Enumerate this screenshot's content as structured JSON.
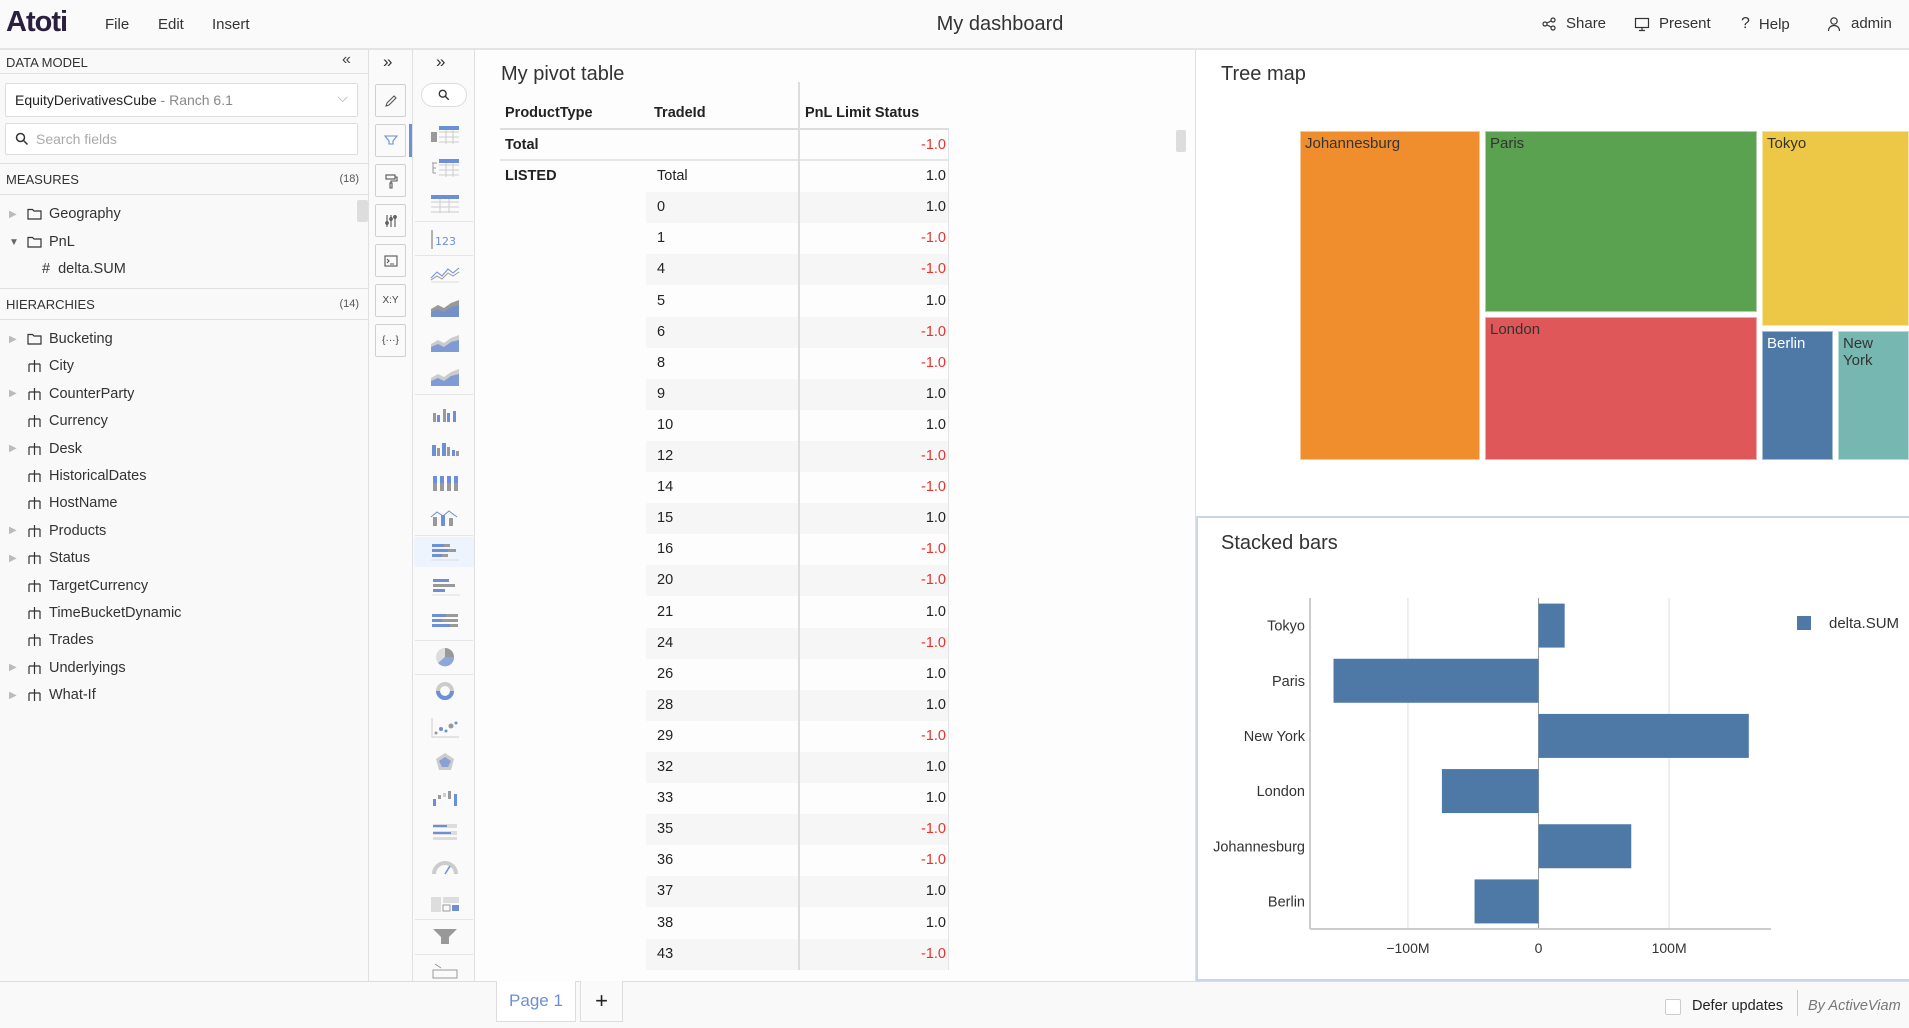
{
  "app": {
    "logo": "Atoti",
    "menu": [
      "File",
      "Edit",
      "Insert"
    ],
    "title": "My dashboard",
    "actions": [
      {
        "label": "Share",
        "icon": "share-icon"
      },
      {
        "label": "Present",
        "icon": "monitor-icon"
      },
      {
        "label": "Help",
        "icon": "help-icon"
      },
      {
        "label": "admin",
        "icon": "user-icon"
      }
    ]
  },
  "data_model": {
    "header": "DATA MODEL",
    "cube": "EquityDerivativesCube",
    "server": "Ranch 6.1",
    "cube_separator": " - ",
    "search_placeholder": "Search fields",
    "measures": {
      "label": "MEASURES",
      "count": "(18)",
      "items": [
        {
          "label": "Geography",
          "type": "folder",
          "expand": "collapsed"
        },
        {
          "label": "PnL",
          "type": "folder",
          "expand": "expanded"
        },
        {
          "label": "delta.SUM",
          "type": "measure",
          "expand": "none"
        }
      ]
    },
    "hierarchies": {
      "label": "HIERARCHIES",
      "count": "(14)",
      "items": [
        {
          "label": "Bucketing",
          "type": "folder",
          "expand": true
        },
        {
          "label": "City",
          "type": "h",
          "expand": false
        },
        {
          "label": "CounterParty",
          "type": "h",
          "expand": true
        },
        {
          "label": "Currency",
          "type": "h",
          "expand": false
        },
        {
          "label": "Desk",
          "type": "h",
          "expand": true
        },
        {
          "label": "HistoricalDates",
          "type": "h",
          "expand": false
        },
        {
          "label": "HostName",
          "type": "h",
          "expand": false
        },
        {
          "label": "Products",
          "type": "h",
          "expand": true
        },
        {
          "label": "Status",
          "type": "h",
          "expand": true
        },
        {
          "label": "TargetCurrency",
          "type": "h",
          "expand": false
        },
        {
          "label": "TimeBucketDynamic",
          "type": "h",
          "expand": false
        },
        {
          "label": "Trades",
          "type": "h",
          "expand": false
        },
        {
          "label": "Underlyings",
          "type": "h",
          "expand": true
        },
        {
          "label": "What-If",
          "type": "h",
          "expand": true
        }
      ]
    }
  },
  "tools": {
    "buttons": [
      {
        "name": "pencil-icon"
      },
      {
        "name": "filter-icon",
        "active": true
      },
      {
        "name": "paint-roller-icon"
      },
      {
        "name": "sliders-icon"
      },
      {
        "name": "terminal-icon"
      },
      {
        "name": "xy-icon",
        "text": "X:Y"
      },
      {
        "name": "braces-icon",
        "text": "{···}"
      }
    ]
  },
  "widgets_palette": [
    "pivot-table",
    "tree-table",
    "table",
    "kpi",
    "line",
    "area",
    "stacked-area",
    "100-area",
    "column",
    "clustered-column",
    "stacked-column",
    "combo",
    "stacked-bar",
    "bar",
    "100-bar",
    "pie",
    "donut",
    "scatter",
    "radar",
    "waterfall",
    "bullet",
    "gauge",
    "layout",
    "funnel",
    "drillthrough"
  ],
  "widgets_palette_selected": "stacked-bar",
  "kpi_text": "123",
  "pivot": {
    "title": "My pivot table",
    "headers": [
      "ProductType",
      "TradeId",
      "PnL Limit Status"
    ],
    "rows": [
      {
        "product": "Total",
        "trade": "",
        "value": "-1.0"
      },
      {
        "product": "LISTED",
        "trade": "Total",
        "value": "1.0"
      },
      {
        "product": "",
        "trade": "0",
        "value": "1.0"
      },
      {
        "product": "",
        "trade": "1",
        "value": "-1.0"
      },
      {
        "product": "",
        "trade": "4",
        "value": "-1.0"
      },
      {
        "product": "",
        "trade": "5",
        "value": "1.0"
      },
      {
        "product": "",
        "trade": "6",
        "value": "-1.0"
      },
      {
        "product": "",
        "trade": "8",
        "value": "-1.0"
      },
      {
        "product": "",
        "trade": "9",
        "value": "1.0"
      },
      {
        "product": "",
        "trade": "10",
        "value": "1.0"
      },
      {
        "product": "",
        "trade": "12",
        "value": "-1.0"
      },
      {
        "product": "",
        "trade": "14",
        "value": "-1.0"
      },
      {
        "product": "",
        "trade": "15",
        "value": "1.0"
      },
      {
        "product": "",
        "trade": "16",
        "value": "-1.0"
      },
      {
        "product": "",
        "trade": "20",
        "value": "-1.0"
      },
      {
        "product": "",
        "trade": "21",
        "value": "1.0"
      },
      {
        "product": "",
        "trade": "24",
        "value": "-1.0"
      },
      {
        "product": "",
        "trade": "26",
        "value": "1.0"
      },
      {
        "product": "",
        "trade": "28",
        "value": "1.0"
      },
      {
        "product": "",
        "trade": "29",
        "value": "-1.0"
      },
      {
        "product": "",
        "trade": "32",
        "value": "1.0"
      },
      {
        "product": "",
        "trade": "33",
        "value": "1.0"
      },
      {
        "product": "",
        "trade": "35",
        "value": "-1.0"
      },
      {
        "product": "",
        "trade": "36",
        "value": "-1.0"
      },
      {
        "product": "",
        "trade": "37",
        "value": "1.0"
      },
      {
        "product": "",
        "trade": "38",
        "value": "1.0"
      },
      {
        "product": "",
        "trade": "43",
        "value": "-1.0"
      }
    ],
    "negative_color": "#e8322c"
  },
  "chart_data": [
    {
      "type": "treemap",
      "title": "Tree map",
      "labels": [
        "Johannesburg",
        "Paris",
        "London",
        "Tokyo",
        "Berlin",
        "New York"
      ],
      "colors": [
        "#f08e2e",
        "#5aa150",
        "#e05759",
        "#ecc846",
        "#4e79a7",
        "#76b7b2"
      ]
    },
    {
      "type": "bar",
      "orientation": "horizontal",
      "title": "Stacked bars",
      "categories": [
        "Tokyo",
        "Paris",
        "New York",
        "London",
        "Johannesburg",
        "Berlin"
      ],
      "series": [
        {
          "name": "delta.SUM",
          "color": "#4e79a7",
          "values": [
            20,
            -157,
            161,
            -74,
            71,
            -49
          ]
        }
      ],
      "unit": "M",
      "xlim": [
        -175,
        178
      ],
      "xticks": [
        {
          "v": -100,
          "label": "−100M"
        },
        {
          "v": 0,
          "label": "0"
        },
        {
          "v": 100,
          "label": "100M"
        }
      ],
      "legend": "top-right",
      "grid": true
    }
  ],
  "footer": {
    "pages": [
      "Page 1"
    ],
    "add": "+",
    "defer": "Defer updates",
    "defer_checked": false,
    "brand": "By ActiveViam"
  }
}
